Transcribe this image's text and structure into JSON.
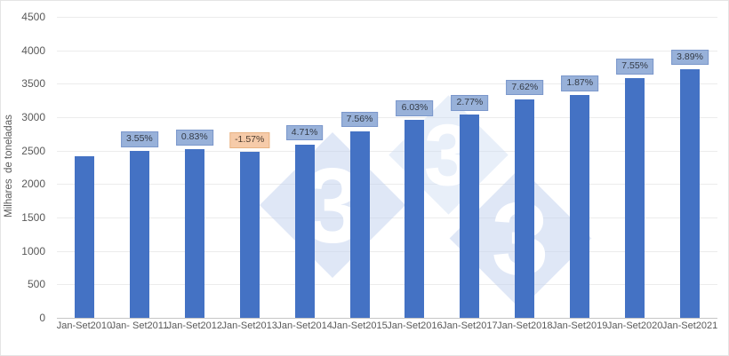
{
  "chart_data": {
    "type": "bar",
    "title": "",
    "xlabel": "",
    "ylabel": "Milhares  de toneladas",
    "categories": [
      "Jan-Set2010",
      "Jan- Set2011",
      "Jan-Set2012",
      "Jan-Set2013",
      "Jan-Set2014",
      "Jan-Set2015",
      "Jan-Set2016",
      "Jan-Set2017",
      "Jan-Set2018",
      "Jan-Set2019",
      "Jan-Set2020",
      "Jan-Set2021"
    ],
    "values": [
      2410,
      2496,
      2516,
      2477,
      2594,
      2790,
      2958,
      3040,
      3271,
      3332,
      3584,
      3723
    ],
    "pct_labels": [
      null,
      "3.55%",
      "0.83%",
      "-1.57%",
      "4.71%",
      "7.56%",
      "6.03%",
      "2.77%",
      "7.62%",
      "1.87%",
      "7.55%",
      "3.89%"
    ],
    "ylim": [
      0,
      4500
    ],
    "yticks": [
      0,
      500,
      1000,
      1500,
      2000,
      2500,
      3000,
      3500,
      4000,
      4500
    ],
    "grid": true,
    "legend_position": "none",
    "colors": {
      "bar": "#4472c4",
      "label_bg_positive": "#98b1d9",
      "label_border_positive": "#7b97cb",
      "label_text_positive": "#333a45",
      "label_bg_negative": "#f6cba9",
      "label_border_negative": "#e8b383",
      "label_text_negative": "#4a3a2d",
      "axis_text": "#595959",
      "gridline": "#ececec"
    }
  },
  "watermark": {
    "glyph": "3"
  }
}
